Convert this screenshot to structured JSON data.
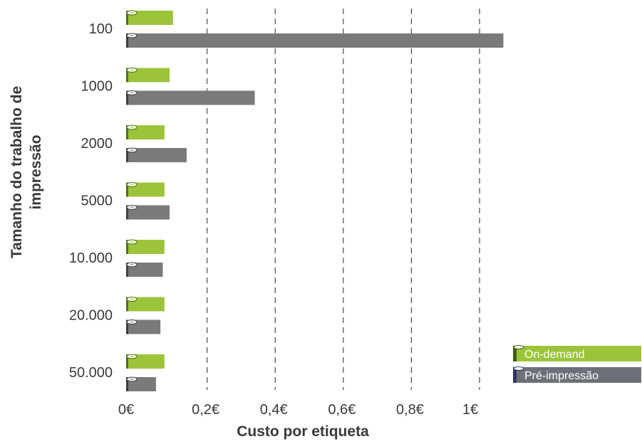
{
  "chart_data": {
    "type": "bar",
    "orientation": "horizontal",
    "title": "",
    "xlabel": "Custo por etiqueta",
    "ylabel": "Tamanho do trabalho de impressão",
    "ylabel_lines": [
      "Tamanho do trabalho de",
      "impressão"
    ],
    "categories": [
      "100",
      "1000",
      "2000",
      "5000",
      "10.000",
      "20.000",
      "50.000"
    ],
    "series": [
      {
        "name": "On-demand",
        "color": "#9cc43a",
        "values": [
          0.1,
          0.09,
          0.075,
          0.075,
          0.075,
          0.075,
          0.075
        ]
      },
      {
        "name": "Pré-impressão",
        "color": "#7a7a7c",
        "values": [
          1.07,
          0.34,
          0.14,
          0.09,
          0.07,
          0.063,
          0.05
        ]
      }
    ],
    "xlim": [
      0,
      1
    ],
    "xticks": [
      0,
      0.2,
      0.4,
      0.6,
      0.8,
      1
    ],
    "xtick_labels": [
      "0€",
      "0,2€",
      "0,4€",
      "0,6€",
      "0,8€",
      "1€"
    ],
    "grid": "vertical dashed",
    "legend_position": "bottom-right",
    "bar_style": "label-roll"
  }
}
